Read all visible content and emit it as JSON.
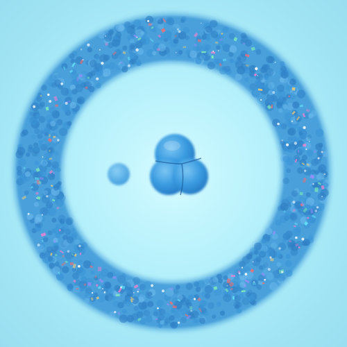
{
  "scene": {
    "colors": {
      "background_center": "#c8f8ff",
      "background_edge": "#98def0",
      "ring_base": "#3b94d6",
      "ring_dark": "#2f7fc4",
      "ring_light": "#6ab8ec",
      "blob_main": "#2f8fd6",
      "blob_highlight": "#7cc6f3",
      "sparkle_palette": [
        "#ff7fd0",
        "#ffd36e",
        "#8dffb0",
        "#a88bff",
        "#ff6b6b",
        "#6af0ff"
      ]
    },
    "ring": {
      "label": "cell ring",
      "style": "dense bubbly blue ring with iridescent speckles"
    },
    "blobs": [
      {
        "name": "main-cluster",
        "lobes": 3
      },
      {
        "name": "small-blob",
        "lobes": 1
      }
    ]
  }
}
